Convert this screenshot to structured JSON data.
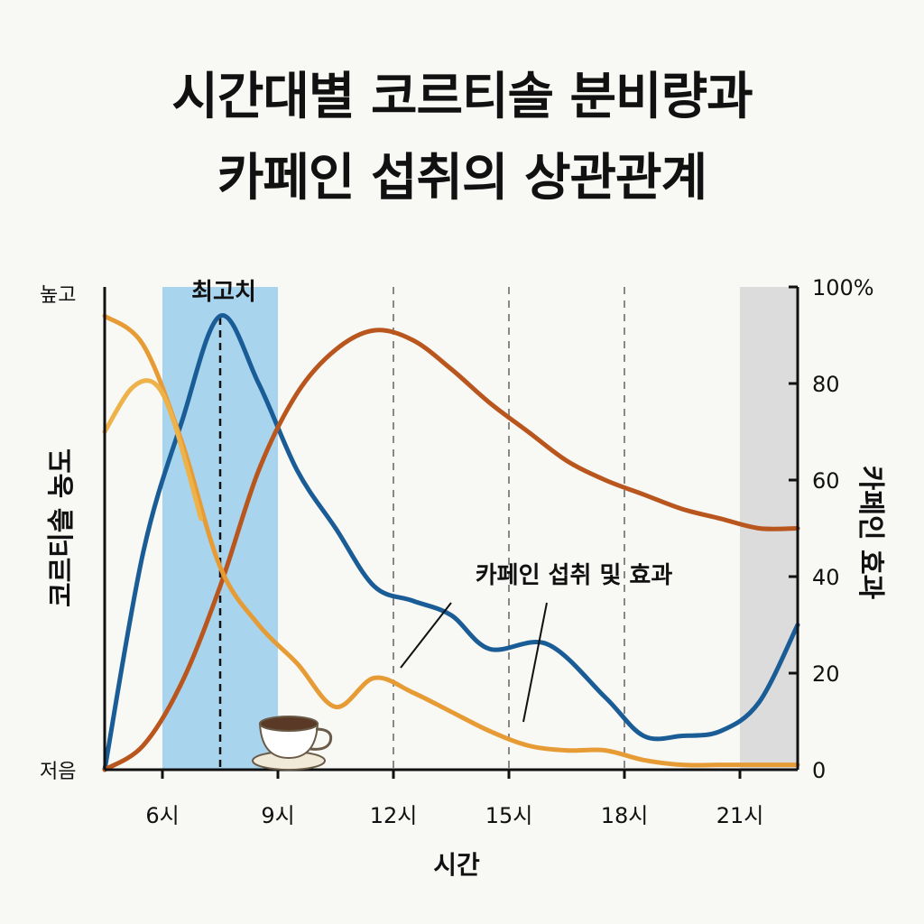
{
  "title_line1": "시간대별 코르티솔 분비량과",
  "title_line2": "카페인 섭취의 상관관계",
  "chart_data": {
    "type": "line",
    "x_label": "시간",
    "y_left_label": "코르티솔 농도",
    "y_left_top": "높고",
    "y_left_bottom": "저음",
    "y_right_label": "카페인 효과",
    "y_right_ticks": [
      "100%",
      "80",
      "60",
      "40",
      "20",
      "0"
    ],
    "x_ticks": [
      "6시",
      "9시",
      "12시",
      "15시",
      "18시",
      "21시"
    ],
    "annotations": {
      "peak": "최고치",
      "caffeine": "카페인 섭취 및 효과"
    },
    "series": [
      {
        "color": "#1a5c96",
        "x": [
          4.5,
          5.5,
          6.5,
          7.5,
          8.5,
          9.5,
          10.5,
          11.5,
          12.5,
          13.5,
          14.5,
          16,
          17.5,
          18.5,
          19.5,
          20.5,
          21.5,
          22.5
        ],
        "y": [
          0,
          45,
          72,
          94,
          80,
          62,
          50,
          38,
          35,
          32,
          25,
          26,
          15,
          7,
          7,
          8,
          14,
          30
        ]
      },
      {
        "color": "#b9561e",
        "x": [
          4.5,
          5.5,
          6.5,
          7.5,
          8.5,
          9.5,
          10.5,
          11.5,
          12.5,
          13.5,
          14.5,
          15.5,
          16.5,
          17.5,
          18.5,
          19.5,
          20.5,
          21.5,
          22.5
        ],
        "y": [
          0,
          5,
          18,
          38,
          62,
          78,
          87,
          91,
          89,
          83,
          76,
          70,
          64,
          60,
          57,
          54,
          52,
          50,
          50
        ]
      },
      {
        "color": "#e79b35",
        "x": [
          4.5,
          5.5,
          6.5,
          7.5,
          8.5,
          9.5,
          10.5,
          11.5,
          12.5,
          13.5,
          14.5,
          15.5,
          16.5,
          17.5,
          18.5,
          19.5,
          20.5,
          21.5,
          22.5
        ],
        "y": [
          94,
          88,
          68,
          42,
          30,
          22,
          13,
          19,
          16,
          12,
          8,
          5,
          4,
          4,
          2,
          1,
          1,
          1,
          1
        ]
      },
      {
        "color": "#edb24a",
        "x": [
          4.5,
          5.2,
          5.8,
          6.3,
          7
        ],
        "y": [
          70,
          79,
          80,
          72,
          52
        ]
      }
    ],
    "shaded_regions": [
      {
        "x": [
          6,
          9
        ],
        "color": "#a8d4ee"
      },
      {
        "x": [
          21,
          22.5
        ],
        "color": "#dcdcdc"
      }
    ],
    "peak_x": 7.5,
    "vlines": [
      12,
      15,
      18
    ],
    "ylim": [
      0,
      100
    ],
    "icon": "coffee-cup-icon"
  }
}
